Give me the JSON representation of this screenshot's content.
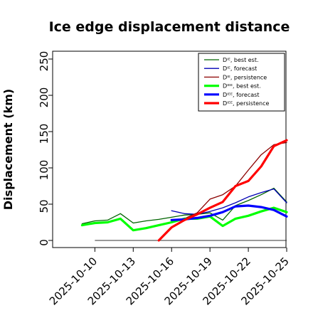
{
  "chart_data": {
    "type": "line",
    "title": "Ice edge displacement distance",
    "ylabel": "Displacement (km)",
    "xlabel": "",
    "ylim": [
      0,
      260
    ],
    "yticks": [
      0,
      50,
      100,
      150,
      200,
      250
    ],
    "x_range": [
      "2025-10-08",
      "2025-10-25"
    ],
    "xtick_labels": [
      "2025-10-10",
      "2025-10-13",
      "2025-10-16",
      "2025-10-19",
      "2025-10-22",
      "2025-10-25"
    ],
    "highlight_tick": "2025-10-16",
    "highlight_color": "#228B22",
    "legend_position": "top-right",
    "reference_line": {
      "value": 0,
      "from": "2025-10-10",
      "to": "2025-10-25",
      "color": "#333333"
    },
    "series": [
      {
        "name": "Dᴵᴱ, best est.",
        "color": "#006400",
        "width": 1.3,
        "x": [
          "2025-10-09",
          "2025-10-10",
          "2025-10-11",
          "2025-10-12",
          "2025-10-13",
          "2025-10-14",
          "2025-10-15",
          "2025-10-16",
          "2025-10-17",
          "2025-10-18",
          "2025-10-19",
          "2025-10-20",
          "2025-10-21",
          "2025-10-22",
          "2025-10-23",
          "2025-10-24",
          "2025-10-25"
        ],
        "y": [
          23,
          27,
          28,
          37,
          24,
          27,
          29,
          32,
          35,
          36,
          38,
          28,
          48,
          55,
          63,
          72,
          53
        ]
      },
      {
        "name": "Dᴵᴱ, forecast",
        "color": "#0000B4",
        "width": 1.3,
        "x": [
          "2025-10-16",
          "2025-10-17",
          "2025-10-18",
          "2025-10-19",
          "2025-10-20",
          "2025-10-21",
          "2025-10-22",
          "2025-10-23",
          "2025-10-24",
          "2025-10-25"
        ],
        "y": [
          41,
          37,
          36,
          40,
          45,
          52,
          60,
          66,
          71,
          52
        ]
      },
      {
        "name": "Dᴵᴱ, persistence",
        "color": "#8B0000",
        "width": 1.3,
        "x": [
          "2025-10-16",
          "2025-10-17",
          "2025-10-18",
          "2025-10-19",
          "2025-10-20",
          "2025-10-21",
          "2025-10-22",
          "2025-10-23",
          "2025-10-24",
          "2025-10-25"
        ],
        "y": [
          25,
          30,
          38,
          57,
          63,
          75,
          97,
          118,
          132,
          135
        ]
      },
      {
        "name": "Dᴵᴱᴱ, best est.",
        "color": "#00FF00",
        "width": 3.2,
        "x": [
          "2025-10-09",
          "2025-10-10",
          "2025-10-11",
          "2025-10-12",
          "2025-10-13",
          "2025-10-14",
          "2025-10-15",
          "2025-10-16",
          "2025-10-17",
          "2025-10-18",
          "2025-10-19",
          "2025-10-20",
          "2025-10-21",
          "2025-10-22",
          "2025-10-23",
          "2025-10-24",
          "2025-10-25"
        ],
        "y": [
          21,
          24,
          25,
          30,
          14,
          17,
          21,
          25,
          30,
          30,
          33,
          20,
          30,
          34,
          40,
          45,
          39
        ]
      },
      {
        "name": "Dᴵᴱᴱ, forecast",
        "color": "#0000FF",
        "width": 3.2,
        "x": [
          "2025-10-16",
          "2025-10-17",
          "2025-10-18",
          "2025-10-19",
          "2025-10-20",
          "2025-10-21",
          "2025-10-22",
          "2025-10-23",
          "2025-10-24",
          "2025-10-25"
        ],
        "y": [
          28,
          29,
          31,
          34,
          39,
          47,
          48,
          46,
          42,
          33
        ]
      },
      {
        "name": "Dᴵᴱᴱ, persistence",
        "color": "#FF0000",
        "width": 3.2,
        "x": [
          "2025-10-15",
          "2025-10-16",
          "2025-10-17",
          "2025-10-18",
          "2025-10-19",
          "2025-10-20",
          "2025-10-21",
          "2025-10-22",
          "2025-10-23",
          "2025-10-24",
          "2025-10-25"
        ],
        "y": [
          0,
          18,
          28,
          36,
          45,
          53,
          75,
          82,
          102,
          130,
          138
        ]
      }
    ]
  }
}
